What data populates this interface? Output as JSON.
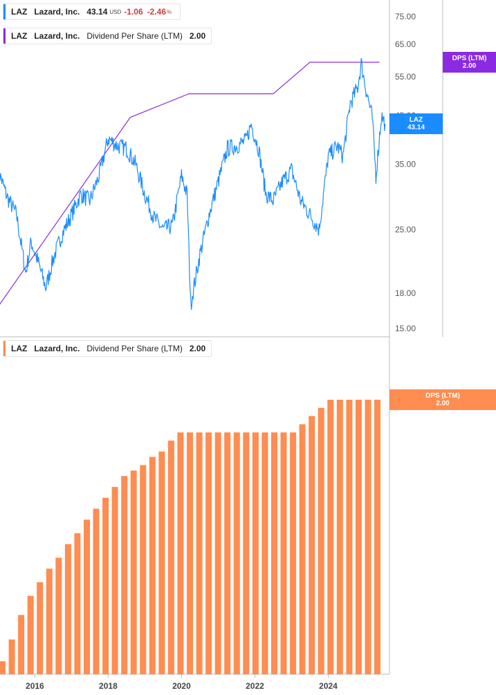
{
  "legend_price": {
    "ticker": "LAZ",
    "company": "Lazard, Inc.",
    "price": "43.14",
    "currency": "USD",
    "change": "-1.06",
    "change_pct": "-2.46",
    "pct_sign": "%",
    "color": "#1a8cff"
  },
  "legend_dps_top": {
    "ticker": "LAZ",
    "company": "Lazard, Inc.",
    "metric": "Dividend Per Share (LTM)",
    "value": "2.00",
    "color": "#8a2be2"
  },
  "legend_dps_bottom": {
    "ticker": "LAZ",
    "company": "Lazard, Inc.",
    "metric": "Dividend Per Share (LTM)",
    "value": "2.00",
    "color": "#ff8c50"
  },
  "tags": {
    "dps_top": {
      "label": "DPS (LTM)",
      "value": "2.00",
      "color": "#8a2be2"
    },
    "laz": {
      "label": "LAZ",
      "value": "43.14",
      "color": "#1a8cff"
    },
    "dps_bottom": {
      "label": "DPS (LTM)",
      "value": "2.00",
      "color": "#ff8c50"
    }
  },
  "chart_data": [
    {
      "type": "line",
      "scale": "log",
      "y_ticks": [
        "75.00",
        "65.00",
        "55.00",
        "45.00",
        "35.00",
        "25.00",
        "18.00",
        "15.00"
      ],
      "series": [
        {
          "name": "LAZ",
          "color": "#1a8cff",
          "points": [
            [
              2015.0,
              34.0
            ],
            [
              2015.25,
              29.5
            ],
            [
              2015.5,
              27.0
            ],
            [
              2015.75,
              20.0
            ],
            [
              2015.9,
              23.5
            ],
            [
              2016.1,
              21.0
            ],
            [
              2016.3,
              18.5
            ],
            [
              2016.5,
              21.5
            ],
            [
              2016.75,
              24.5
            ],
            [
              2017.0,
              27.0
            ],
            [
              2017.25,
              30.0
            ],
            [
              2017.5,
              29.0
            ],
            [
              2017.75,
              33.0
            ],
            [
              2018.0,
              40.0
            ],
            [
              2018.25,
              38.5
            ],
            [
              2018.5,
              38.0
            ],
            [
              2018.75,
              35.0
            ],
            [
              2019.0,
              30.0
            ],
            [
              2019.25,
              26.5
            ],
            [
              2019.5,
              25.0
            ],
            [
              2019.75,
              25.5
            ],
            [
              2020.0,
              33.0
            ],
            [
              2020.15,
              30.0
            ],
            [
              2020.25,
              17.0
            ],
            [
              2020.5,
              22.0
            ],
            [
              2020.75,
              27.0
            ],
            [
              2021.0,
              32.0
            ],
            [
              2021.25,
              38.0
            ],
            [
              2021.5,
              38.5
            ],
            [
              2021.75,
              39.5
            ],
            [
              2021.9,
              43.0
            ],
            [
              2022.1,
              38.0
            ],
            [
              2022.3,
              30.0
            ],
            [
              2022.5,
              29.0
            ],
            [
              2022.75,
              32.0
            ],
            [
              2023.0,
              34.0
            ],
            [
              2023.25,
              29.0
            ],
            [
              2023.5,
              27.0
            ],
            [
              2023.75,
              25.0
            ],
            [
              2024.0,
              36.5
            ],
            [
              2024.25,
              38.5
            ],
            [
              2024.4,
              36.5
            ],
            [
              2024.6,
              48.0
            ],
            [
              2024.8,
              52.0
            ],
            [
              2024.9,
              59.0
            ],
            [
              2025.0,
              53.0
            ],
            [
              2025.2,
              44.5
            ],
            [
              2025.3,
              33.0
            ],
            [
              2025.45,
              45.0
            ],
            [
              2025.55,
              43.14
            ]
          ]
        },
        {
          "name": "DPS (LTM)",
          "color": "#8a2be2",
          "points": [
            [
              2015.0,
              1.07
            ],
            [
              2018.6,
              1.79
            ],
            [
              2020.2,
              1.88
            ],
            [
              2022.5,
              1.88
            ],
            [
              2023.5,
              2.0
            ],
            [
              2025.4,
              2.0
            ]
          ]
        }
      ]
    },
    {
      "type": "bar",
      "x_ticks": [
        "2016",
        "2018",
        "2020",
        "2022",
        "2024"
      ],
      "series": [
        {
          "name": "DPS (LTM)",
          "color": "#ff8c50",
          "categories": [
            "2015Q1",
            "2015Q2",
            "2015Q3",
            "2015Q4",
            "2016Q1",
            "2016Q2",
            "2016Q3",
            "2016Q4",
            "2017Q1",
            "2017Q2",
            "2017Q3",
            "2017Q4",
            "2018Q1",
            "2018Q2",
            "2018Q3",
            "2018Q4",
            "2019Q1",
            "2019Q2",
            "2019Q3",
            "2019Q4",
            "2020Q1",
            "2020Q2",
            "2020Q3",
            "2020Q4",
            "2021Q1",
            "2021Q2",
            "2021Q3",
            "2021Q4",
            "2022Q1",
            "2022Q2",
            "2022Q3",
            "2022Q4",
            "2023Q1",
            "2023Q2",
            "2023Q3",
            "2023Q4",
            "2024Q1",
            "2024Q2",
            "2024Q3",
            "2024Q4",
            "2025Q1"
          ],
          "values": [
            1.04,
            1.12,
            1.21,
            1.28,
            1.33,
            1.38,
            1.42,
            1.47,
            1.51,
            1.56,
            1.6,
            1.64,
            1.68,
            1.72,
            1.74,
            1.76,
            1.79,
            1.81,
            1.85,
            1.88,
            1.88,
            1.88,
            1.88,
            1.88,
            1.88,
            1.88,
            1.88,
            1.88,
            1.88,
            1.88,
            1.88,
            1.88,
            1.91,
            1.94,
            1.97,
            2.0,
            2.0,
            2.0,
            2.0,
            2.0,
            2.0
          ]
        }
      ]
    }
  ]
}
